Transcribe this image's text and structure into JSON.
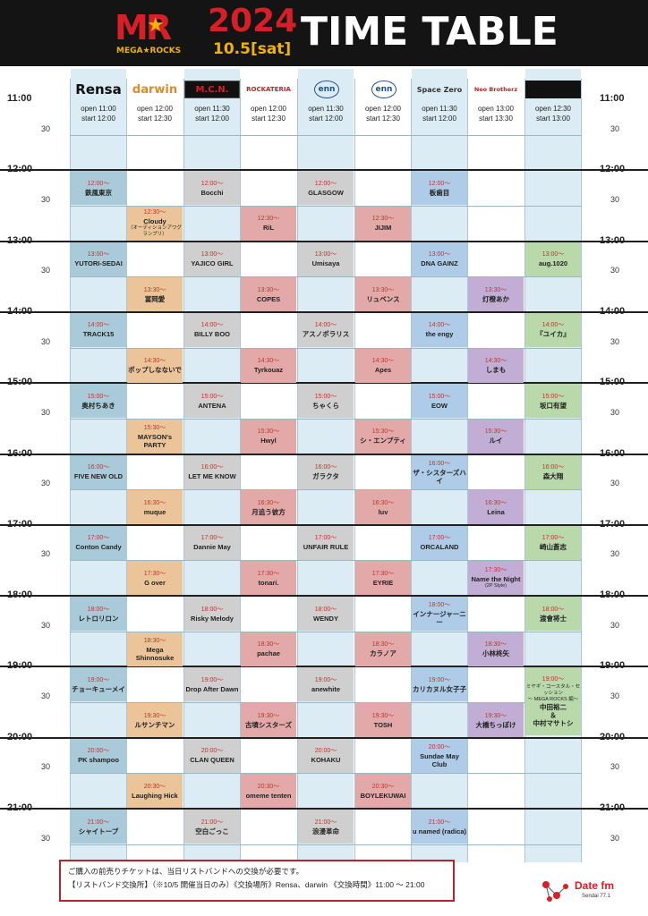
{
  "header": {
    "logo_text": "MR",
    "logo_sub": "MEGA★ROCKS",
    "year": "2024",
    "date": "10.5[sat]",
    "title": "TIME TABLE"
  },
  "times": {
    "hours": [
      "11:00",
      "12:00",
      "13:00",
      "14:00",
      "15:00",
      "16:00",
      "17:00",
      "18:00",
      "19:00",
      "20:00",
      "21:00"
    ],
    "half": "30"
  },
  "venues": [
    {
      "name": "Rensa",
      "color": "#111111",
      "open": "open 11:00",
      "start": "start  12:00"
    },
    {
      "name": "darwin",
      "color": "#e08a2a",
      "open": "open 12:00",
      "start": "start  12:30"
    },
    {
      "name": "M.C.N.",
      "color": "#d71f28",
      "open": "open 11:30",
      "start": "start  12:00"
    },
    {
      "name": "ROCKATERIA",
      "color": "#c4242b",
      "open": "open 12:00",
      "start": "start  12:30"
    },
    {
      "name": "enn",
      "color": "#1f4f9e",
      "open": "open 11:30",
      "start": "start  12:00"
    },
    {
      "name": "enn",
      "color": "#1f4f9e",
      "open": "open 12:00",
      "start": "start  12:30"
    },
    {
      "name": "Space Zero",
      "color": "#333333",
      "open": "open 11:30",
      "start": "start  12:00"
    },
    {
      "name": "Neo Brotherz",
      "color": "#b3262c",
      "open": "open 13:00",
      "start": "start  13:30"
    },
    {
      "name": "",
      "color": "#333333",
      "open": "open 12:30",
      "start": "start  13:00"
    }
  ],
  "slots": [
    {
      "col": 0,
      "time": "12:00～",
      "name": "鉄風東京"
    },
    {
      "col": 0,
      "time": "13:00～",
      "name": "YUTORI-SEDAI"
    },
    {
      "col": 0,
      "time": "14:00～",
      "name": "TRACK15"
    },
    {
      "col": 0,
      "time": "15:00～",
      "name": "奥村ちあき"
    },
    {
      "col": 0,
      "time": "16:00～",
      "name": "FIVE NEW OLD"
    },
    {
      "col": 0,
      "time": "17:00～",
      "name": "Conton Candy"
    },
    {
      "col": 0,
      "time": "18:00～",
      "name": "レトロリロン"
    },
    {
      "col": 0,
      "time": "19:00～",
      "name": "チョーキューメイ"
    },
    {
      "col": 0,
      "time": "20:00～",
      "name": "PK shampoo"
    },
    {
      "col": 0,
      "time": "21:00～",
      "name": "シャイトープ"
    },
    {
      "col": 1,
      "time": "12:30～",
      "name": "Cloudy",
      "note": "（オーディションアワグランプリ）"
    },
    {
      "col": 1,
      "time": "13:30～",
      "name": "冨岡愛"
    },
    {
      "col": 1,
      "time": "14:30～",
      "name": "ポップしなないで"
    },
    {
      "col": 1,
      "time": "15:30～",
      "name": "MAYSON's PARTY"
    },
    {
      "col": 1,
      "time": "16:30～",
      "name": "muque"
    },
    {
      "col": 1,
      "time": "17:30～",
      "name": "G over"
    },
    {
      "col": 1,
      "time": "18:30～",
      "name": "Mega Shinnosuke"
    },
    {
      "col": 1,
      "time": "19:30～",
      "name": "ルサンチマン"
    },
    {
      "col": 1,
      "time": "20:30～",
      "name": "Laughing Hick"
    },
    {
      "col": 2,
      "time": "12:00～",
      "name": "Bocchi"
    },
    {
      "col": 2,
      "time": "13:00～",
      "name": "YAJICO GIRL"
    },
    {
      "col": 2,
      "time": "14:00～",
      "name": "BILLY BOO"
    },
    {
      "col": 2,
      "time": "15:00～",
      "name": "ANTENA"
    },
    {
      "col": 2,
      "time": "16:00～",
      "name": "LET ME KNOW"
    },
    {
      "col": 2,
      "time": "17:00～",
      "name": "Dannie May"
    },
    {
      "col": 2,
      "time": "18:00～",
      "name": "Risky Melody"
    },
    {
      "col": 2,
      "time": "19:00～",
      "name": "Drop After Dawn"
    },
    {
      "col": 2,
      "time": "20:00～",
      "name": "CLAN QUEEN"
    },
    {
      "col": 2,
      "time": "21:00～",
      "name": "空白ごっこ"
    },
    {
      "col": 3,
      "time": "12:30～",
      "name": "RiL"
    },
    {
      "col": 3,
      "time": "13:30～",
      "name": "COPES"
    },
    {
      "col": 3,
      "time": "14:30～",
      "name": "Tyrkouaz"
    },
    {
      "col": 3,
      "time": "15:30～",
      "name": "Hwyl"
    },
    {
      "col": 3,
      "time": "16:30～",
      "name": "月追う彼方"
    },
    {
      "col": 3,
      "time": "17:30～",
      "name": "tonari."
    },
    {
      "col": 3,
      "time": "18:30～",
      "name": "pachae"
    },
    {
      "col": 3,
      "time": "19:30～",
      "name": "古墳シスターズ"
    },
    {
      "col": 3,
      "time": "20:30～",
      "name": "omeme tenten"
    },
    {
      "col": 4,
      "time": "12:00～",
      "name": "GLASGOW"
    },
    {
      "col": 4,
      "time": "13:00～",
      "name": "Umisaya"
    },
    {
      "col": 4,
      "time": "14:00～",
      "name": "アスノポラリス"
    },
    {
      "col": 4,
      "time": "15:00～",
      "name": "ちゃくら"
    },
    {
      "col": 4,
      "time": "16:00～",
      "name": "ガラクタ"
    },
    {
      "col": 4,
      "time": "17:00～",
      "name": "UNFAIR RULE"
    },
    {
      "col": 4,
      "time": "18:00～",
      "name": "WENDY"
    },
    {
      "col": 4,
      "time": "19:00～",
      "name": "anewhite"
    },
    {
      "col": 4,
      "time": "20:00～",
      "name": "KOHAKU"
    },
    {
      "col": 4,
      "time": "21:00～",
      "name": "浪漫革命"
    },
    {
      "col": 5,
      "time": "12:30～",
      "name": "JIJIM"
    },
    {
      "col": 5,
      "time": "13:30～",
      "name": "リュベンス"
    },
    {
      "col": 5,
      "time": "14:30～",
      "name": "Apes"
    },
    {
      "col": 5,
      "time": "15:30～",
      "name": "シ・エンプティ"
    },
    {
      "col": 5,
      "time": "16:30～",
      "name": "luv"
    },
    {
      "col": 5,
      "time": "17:30～",
      "name": "EYRIE"
    },
    {
      "col": 5,
      "time": "18:30～",
      "name": "カラノア"
    },
    {
      "col": 5,
      "time": "19:30～",
      "name": "TOSH"
    },
    {
      "col": 5,
      "time": "20:30～",
      "name": "BOYLEKUWAI"
    },
    {
      "col": 6,
      "time": "12:00～",
      "name": "板歯目"
    },
    {
      "col": 6,
      "time": "13:00～",
      "name": "DNA GAINZ"
    },
    {
      "col": 6,
      "time": "14:00～",
      "name": "the engy"
    },
    {
      "col": 6,
      "time": "15:00～",
      "name": "EOW"
    },
    {
      "col": 6,
      "time": "16:00～",
      "name": "ザ・シスターズハイ"
    },
    {
      "col": 6,
      "time": "17:00～",
      "name": "ORCALAND"
    },
    {
      "col": 6,
      "time": "18:00～",
      "name": "インナージャーニー"
    },
    {
      "col": 6,
      "time": "19:00～",
      "name": "カリカヌル女子子"
    },
    {
      "col": 6,
      "time": "20:00～",
      "name": "Sundae May Club"
    },
    {
      "col": 6,
      "time": "21:00～",
      "name": "u named (radica)"
    },
    {
      "col": 7,
      "time": "13:30～",
      "name": "灯橙あか"
    },
    {
      "col": 7,
      "time": "14:30～",
      "name": "しまも"
    },
    {
      "col": 7,
      "time": "15:30～",
      "name": "ルイ"
    },
    {
      "col": 7,
      "time": "16:30～",
      "name": "Leina"
    },
    {
      "col": 7,
      "time": "17:30～",
      "name": "Name the Night",
      "note": "(2P Style)"
    },
    {
      "col": 7,
      "time": "18:30～",
      "name": "小林柊矢"
    },
    {
      "col": 7,
      "time": "19:30～",
      "name": "大橋ちっぽけ"
    },
    {
      "col": 8,
      "time": "13:00～",
      "name": "aug.1020"
    },
    {
      "col": 8,
      "time": "14:00～",
      "name": "『ユイカ』"
    },
    {
      "col": 8,
      "time": "15:00～",
      "name": "坂口有望"
    },
    {
      "col": 8,
      "time": "16:00～",
      "name": "森大翔"
    },
    {
      "col": 8,
      "time": "17:00～",
      "name": "崎山蒼志"
    },
    {
      "col": 8,
      "time": "18:00～",
      "name": "渡會将士"
    },
    {
      "col": 8,
      "time": "19:00～",
      "name": "中田裕二\n＆\n中村マサトシ",
      "note": "ミヤギ・コースタル・セッション\n～ MEGA ROCKS 編～"
    }
  ],
  "palette": {
    "rensa": "#a9cbd9",
    "darwin": "#ebc49a",
    "mcn": "#cfcfcf",
    "rockateria": "#e3a9a8",
    "enn1": "#cfcfcf",
    "enn2": "#e3a9a8",
    "zero": "#aecce8",
    "neo": "#c2aed4",
    "last": "#b9d9ab"
  },
  "notice": {
    "line1": "ご購入の前売りチケットは、当日リストバンドへの交換が必要です。",
    "line2": "【リストバンド交換所】（※10/5 開催当日のみ）《交換場所》Rensa、darwin 《交換時間》11:00 ～ 21:00"
  },
  "sponsor": {
    "name": "Date fm",
    "sub": "Sendai 77.1"
  }
}
